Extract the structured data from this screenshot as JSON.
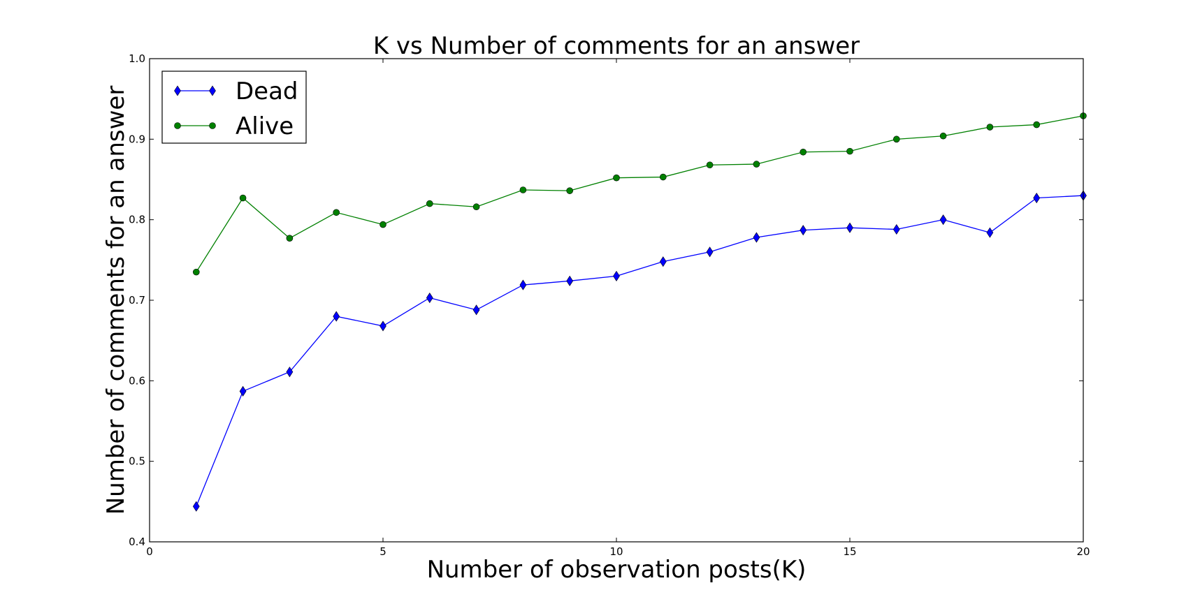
{
  "chart_data": {
    "type": "line",
    "title": "K vs Number of comments for an answer",
    "xlabel": "Number of observation posts(K)",
    "ylabel": "Number of comments for an answer",
    "xlim": [
      0,
      20
    ],
    "ylim": [
      0.4,
      1.0
    ],
    "xticks": [
      "0",
      "5",
      "10",
      "15",
      "20"
    ],
    "yticks": [
      "0.4",
      "0.5",
      "0.6",
      "0.7",
      "0.8",
      "0.9",
      "1.0"
    ],
    "grid": false,
    "legend_position": "top-left",
    "x": [
      1,
      2,
      3,
      4,
      5,
      6,
      7,
      8,
      9,
      10,
      11,
      12,
      13,
      14,
      15,
      16,
      17,
      18,
      19,
      20
    ],
    "series": [
      {
        "name": "Dead",
        "color": "#0000ff",
        "marker": "diamond",
        "values": [
          0.444,
          0.587,
          0.611,
          0.68,
          0.668,
          0.703,
          0.688,
          0.719,
          0.724,
          0.73,
          0.748,
          0.76,
          0.778,
          0.787,
          0.79,
          0.788,
          0.8,
          0.784,
          0.827,
          0.83
        ]
      },
      {
        "name": "Alive",
        "color": "#008000",
        "marker": "circle",
        "values": [
          0.735,
          0.827,
          0.777,
          0.809,
          0.794,
          0.82,
          0.816,
          0.837,
          0.836,
          0.852,
          0.853,
          0.868,
          0.869,
          0.884,
          0.885,
          0.9,
          0.904,
          0.915,
          0.918,
          0.929
        ]
      }
    ]
  }
}
